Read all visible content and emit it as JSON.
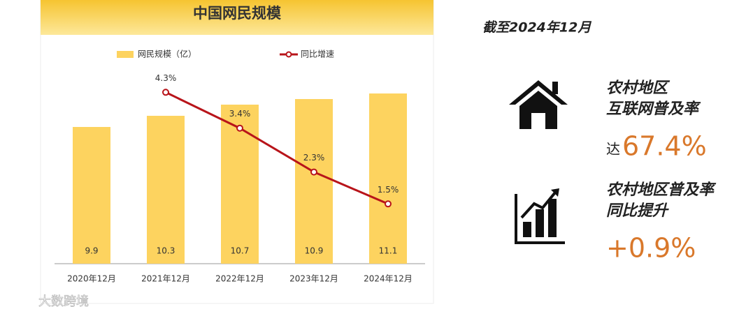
{
  "chart_data": {
    "type": "bar-line",
    "title": "中国网民规模",
    "categories": [
      "2020年12月",
      "2021年12月",
      "2022年12月",
      "2023年12月",
      "2024年12月"
    ],
    "series": [
      {
        "name": "网民规模（亿）",
        "type": "bar",
        "color": "#fdd35f",
        "values": [
          9.9,
          10.3,
          10.7,
          10.9,
          11.1
        ]
      },
      {
        "name": "同比增速",
        "type": "line",
        "axis": "y2",
        "color": "#b8141a",
        "values": [
          null,
          4.3,
          3.4,
          2.3,
          1.5
        ],
        "value_labels": [
          null,
          "4.3%",
          "3.4%",
          "2.3%",
          "1.5%"
        ]
      }
    ],
    "ylim": [
      5,
      13
    ],
    "y2lim": [
      0,
      5.6
    ],
    "legend": "top"
  },
  "panel": {
    "date": "截至2024年12月",
    "items": [
      {
        "label_lines": [
          "农村地区",
          "互联网普及率"
        ],
        "prefix": "达",
        "value": "67.4%"
      },
      {
        "label_lines": [
          "农村地区普及率",
          "同比提升"
        ],
        "prefix": null,
        "value": "+0.9%"
      }
    ]
  },
  "watermark": "大数跨境"
}
